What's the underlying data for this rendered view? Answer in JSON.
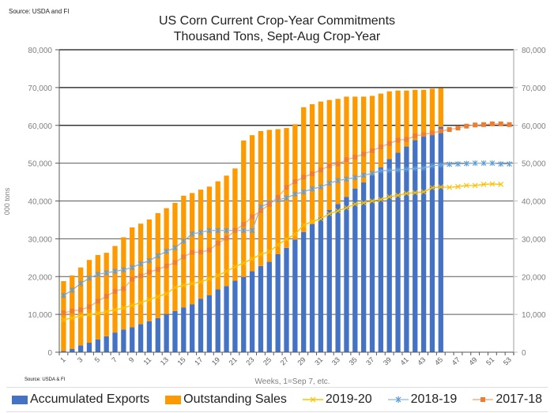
{
  "source_top": "Source: USDA and  FI",
  "source_bottom": "Source: USDA & FI",
  "chart_data": {
    "type": "bar",
    "stacked": true,
    "title": "US Corn Current Crop-Year Commitments",
    "subtitle": "Thousand Tons, Sept-Aug Crop-Year",
    "xlabel": "Weeks, 1=Sep 7, etc.",
    "ylabel": "000 tons",
    "ylim": [
      0,
      80000
    ],
    "yticks": [
      0,
      10000,
      20000,
      30000,
      40000,
      50000,
      60000,
      70000,
      80000
    ],
    "ytick_labels": [
      "0",
      "10,000",
      "20,000",
      "30,000",
      "40,000",
      "50,000",
      "60,000",
      "70,000",
      "80,000"
    ],
    "secondary_y": true,
    "grid": true,
    "legend_position": "bottom",
    "categories": [
      1,
      2,
      3,
      4,
      5,
      6,
      7,
      8,
      9,
      10,
      11,
      12,
      13,
      14,
      15,
      16,
      17,
      18,
      19,
      20,
      21,
      22,
      23,
      24,
      25,
      26,
      27,
      28,
      29,
      30,
      31,
      32,
      33,
      34,
      35,
      36,
      37,
      38,
      39,
      40,
      41,
      42,
      43,
      44,
      45,
      46,
      47,
      48,
      49,
      50,
      51,
      52,
      53
    ],
    "xtick_labels_shown": [
      1,
      3,
      5,
      7,
      9,
      11,
      13,
      15,
      17,
      19,
      21,
      23,
      25,
      27,
      29,
      31,
      33,
      35,
      37,
      39,
      41,
      43,
      45,
      47,
      49,
      51,
      53
    ],
    "series": [
      {
        "name": "Accumulated Exports",
        "type": "bar",
        "color": "#4472c4",
        "values": [
          300,
          900,
          1800,
          2500,
          3400,
          4200,
          5200,
          6000,
          6600,
          7400,
          8200,
          9000,
          10100,
          10900,
          11800,
          12700,
          14100,
          15100,
          16600,
          17500,
          18900,
          19900,
          21400,
          22800,
          23900,
          25900,
          27600,
          29800,
          31800,
          33900,
          35800,
          37600,
          39200,
          41100,
          43300,
          44900,
          46900,
          48900,
          51100,
          52800,
          54400,
          56100,
          57100,
          57600,
          59600,
          null,
          null,
          null,
          null,
          null,
          null,
          null,
          null
        ]
      },
      {
        "name": "Outstanding Sales",
        "type": "bar",
        "color": "#ff9900",
        "values": [
          18500,
          19400,
          20600,
          21900,
          22300,
          22100,
          22900,
          24400,
          26400,
          26600,
          26900,
          27800,
          28000,
          28600,
          29600,
          29400,
          28900,
          28700,
          28600,
          29200,
          29700,
          36100,
          36000,
          35700,
          34900,
          33100,
          31700,
          30500,
          33000,
          31700,
          30500,
          29100,
          27800,
          26500,
          24300,
          22700,
          20900,
          19500,
          17900,
          16400,
          14800,
          13300,
          12300,
          12100,
          10300,
          null,
          null,
          null,
          null,
          null,
          null,
          null,
          null
        ]
      },
      {
        "name": "2019-20",
        "type": "line",
        "marker": "x",
        "color": "#ffc000",
        "values": [
          8600,
          9000,
          9600,
          9900,
          10300,
          10700,
          11200,
          11700,
          12400,
          13100,
          13900,
          14700,
          15500,
          17100,
          17700,
          18200,
          18600,
          19400,
          20300,
          21400,
          22600,
          23600,
          24700,
          25900,
          26600,
          28400,
          29900,
          31200,
          33600,
          34600,
          35300,
          36600,
          37400,
          38200,
          39200,
          39500,
          40000,
          40400,
          41100,
          41500,
          42000,
          42200,
          42400,
          43500,
          43700,
          43600,
          43800,
          44100,
          44100,
          44400,
          44500,
          44400,
          null
        ]
      },
      {
        "name": "2018-19",
        "type": "line",
        "marker": "star",
        "color": "#5b9bd5",
        "values": [
          15000,
          16400,
          18200,
          19600,
          20600,
          21000,
          21400,
          21800,
          22400,
          23400,
          24200,
          25500,
          26700,
          27600,
          29400,
          31300,
          31700,
          32200,
          32200,
          32200,
          32200,
          32200,
          32200,
          38400,
          39500,
          40300,
          40800,
          41800,
          42400,
          43200,
          43700,
          44700,
          45400,
          45800,
          46200,
          46800,
          47300,
          48000,
          48100,
          48200,
          48400,
          48600,
          48700,
          49300,
          49500,
          49700,
          49800,
          49900,
          50000,
          50000,
          50000,
          49800,
          49800
        ]
      },
      {
        "name": "2017-18",
        "type": "line",
        "marker": "square",
        "color": "#ed7d31",
        "values": [
          10400,
          10900,
          11200,
          12000,
          13500,
          14800,
          16100,
          16800,
          19300,
          20200,
          21200,
          21900,
          22800,
          23700,
          25200,
          26400,
          26500,
          27000,
          28800,
          30200,
          32200,
          33800,
          35800,
          37400,
          39100,
          41000,
          43600,
          45100,
          46300,
          47200,
          48200,
          49300,
          49800,
          50900,
          51600,
          52400,
          53300,
          54300,
          55200,
          56100,
          56300,
          57200,
          57600,
          58000,
          58500,
          58900,
          59300,
          59800,
          60100,
          60200,
          60400,
          60400,
          60200
        ]
      }
    ]
  }
}
